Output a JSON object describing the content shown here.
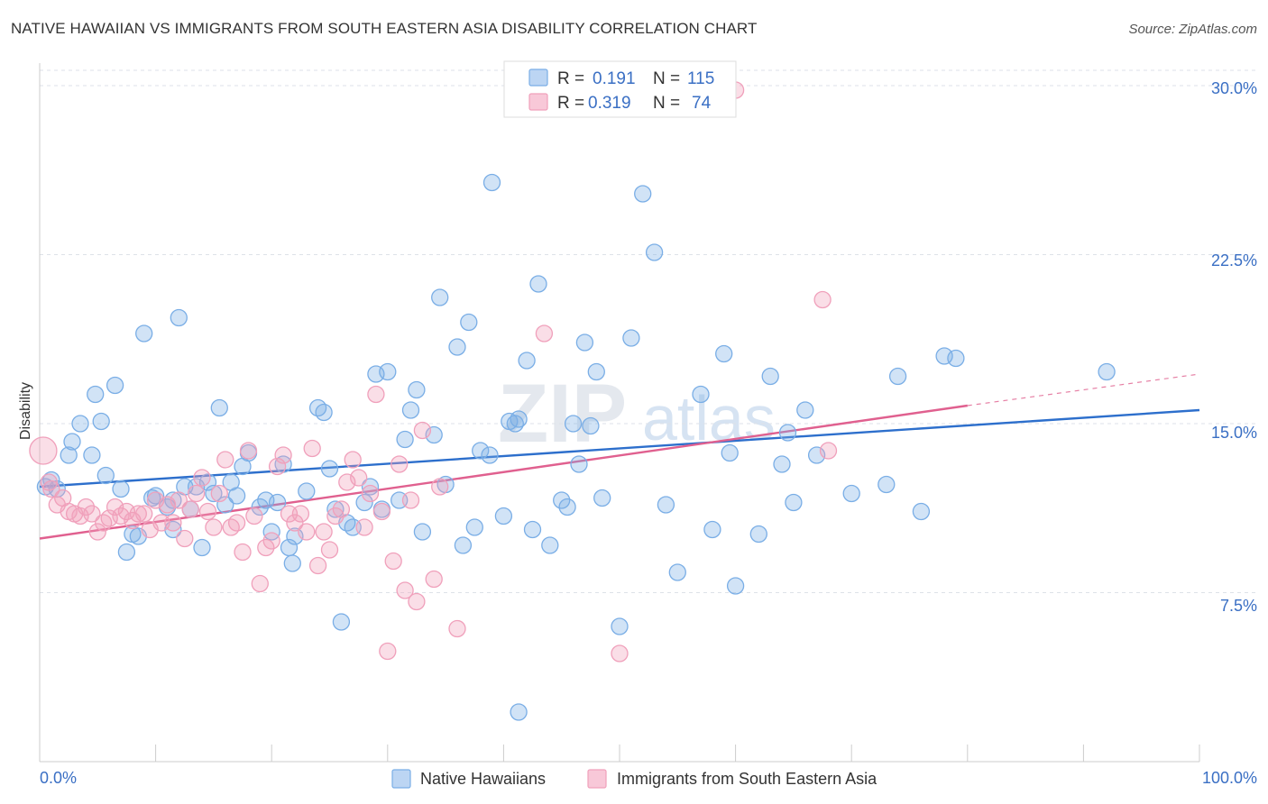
{
  "title": "NATIVE HAWAIIAN VS IMMIGRANTS FROM SOUTH EASTERN ASIA DISABILITY CORRELATION CHART",
  "source": "Source: ZipAtlas.com",
  "watermark": {
    "zip": "ZIP",
    "atlas": "atlas"
  },
  "chart_data": {
    "type": "scatter",
    "title": "NATIVE HAWAIIAN VS IMMIGRANTS FROM SOUTH EASTERN ASIA DISABILITY CORRELATION CHART",
    "xlabel": "",
    "ylabel": "Disability",
    "xlim": [
      0,
      100
    ],
    "ylim": [
      0,
      31
    ],
    "x_tick_labels": [
      "0.0%",
      "100.0%"
    ],
    "y_ticks": [
      {
        "value": 7.5,
        "label": "7.5%"
      },
      {
        "value": 15.0,
        "label": "15.0%"
      },
      {
        "value": 22.5,
        "label": "22.5%"
      },
      {
        "value": 30.0,
        "label": "30.0%"
      }
    ],
    "legend": {
      "r_label": "R =",
      "n_label": "N =",
      "entries": [
        {
          "name": "Native Hawaiians",
          "r": "0.191",
          "n": "115",
          "color": "#7aaee6"
        },
        {
          "name": "Immigrants from South Eastern Asia",
          "r": "0.319",
          "n": "74",
          "color": "#f0a0bb"
        }
      ]
    },
    "series": [
      {
        "name": "Native Hawaiians",
        "color": "#7aaee6",
        "line_color": "#2d6fcc",
        "trend": {
          "x0": 0,
          "y0": 12.2,
          "x1": 100,
          "y1": 15.6
        },
        "points": [
          [
            0.5,
            12.2
          ],
          [
            1,
            12.5
          ],
          [
            1.5,
            12.1
          ],
          [
            2.5,
            13.6
          ],
          [
            2.8,
            14.2
          ],
          [
            3.5,
            15
          ],
          [
            4.5,
            13.6
          ],
          [
            4.8,
            16.3
          ],
          [
            5.3,
            15.1
          ],
          [
            5.7,
            12.7
          ],
          [
            6.5,
            16.7
          ],
          [
            7,
            12.1
          ],
          [
            7.5,
            9.3
          ],
          [
            8,
            10.1
          ],
          [
            8.5,
            10
          ],
          [
            9,
            19
          ],
          [
            9.7,
            11.7
          ],
          [
            10,
            11.8
          ],
          [
            11,
            11.3
          ],
          [
            11.5,
            10.3
          ],
          [
            11.5,
            11.6
          ],
          [
            12,
            19.7
          ],
          [
            12.5,
            12.2
          ],
          [
            13,
            11.2
          ],
          [
            13.5,
            12.2
          ],
          [
            14,
            9.5
          ],
          [
            14.5,
            12.4
          ],
          [
            15,
            11.9
          ],
          [
            15.5,
            15.7
          ],
          [
            16,
            11.4
          ],
          [
            16.5,
            12.4
          ],
          [
            17,
            11.8
          ],
          [
            17.5,
            13.1
          ],
          [
            18,
            13.7
          ],
          [
            19,
            11.3
          ],
          [
            19.5,
            11.6
          ],
          [
            20,
            10.2
          ],
          [
            20.5,
            11.5
          ],
          [
            21,
            13.2
          ],
          [
            21.5,
            9.5
          ],
          [
            21.8,
            8.8
          ],
          [
            22,
            10
          ],
          [
            23,
            12
          ],
          [
            24,
            15.7
          ],
          [
            24.5,
            15.5
          ],
          [
            25,
            13
          ],
          [
            25.5,
            11.2
          ],
          [
            26,
            6.2
          ],
          [
            26.5,
            10.6
          ],
          [
            27,
            10.4
          ],
          [
            28,
            11.5
          ],
          [
            28.5,
            12.2
          ],
          [
            29,
            17.2
          ],
          [
            29.5,
            11.2
          ],
          [
            30,
            17.3
          ],
          [
            31,
            11.6
          ],
          [
            31.5,
            14.3
          ],
          [
            32,
            15.6
          ],
          [
            32.5,
            16.5
          ],
          [
            33,
            10.2
          ],
          [
            34,
            14.5
          ],
          [
            34.5,
            20.6
          ],
          [
            35,
            12.3
          ],
          [
            36,
            18.4
          ],
          [
            36.5,
            9.6
          ],
          [
            37,
            19.5
          ],
          [
            37.5,
            10.4
          ],
          [
            38,
            13.8
          ],
          [
            38.8,
            13.6
          ],
          [
            39,
            25.7
          ],
          [
            40,
            10.9
          ],
          [
            40.5,
            15.1
          ],
          [
            41,
            15
          ],
          [
            41.3,
            15.2
          ],
          [
            42,
            17.8
          ],
          [
            42.5,
            10.3
          ],
          [
            43,
            21.2
          ],
          [
            44,
            9.6
          ],
          [
            45,
            11.6
          ],
          [
            45.5,
            11.3
          ],
          [
            46,
            15
          ],
          [
            46.5,
            13.2
          ],
          [
            47,
            18.6
          ],
          [
            47.5,
            14.9
          ],
          [
            48,
            17.3
          ],
          [
            48.5,
            11.7
          ],
          [
            50,
            6
          ],
          [
            51,
            18.8
          ],
          [
            52,
            25.2
          ],
          [
            53,
            22.6
          ],
          [
            54,
            11.4
          ],
          [
            55,
            8.4
          ],
          [
            57,
            16.3
          ],
          [
            58,
            10.3
          ],
          [
            59,
            18.1
          ],
          [
            59.5,
            13.7
          ],
          [
            60,
            7.8
          ],
          [
            62,
            10.1
          ],
          [
            63,
            17.1
          ],
          [
            64,
            13.2
          ],
          [
            64.5,
            14.6
          ],
          [
            65,
            11.5
          ],
          [
            66,
            15.6
          ],
          [
            67,
            13.6
          ],
          [
            70,
            11.9
          ],
          [
            73,
            12.3
          ],
          [
            74,
            17.1
          ],
          [
            76,
            11.1
          ],
          [
            78,
            18
          ],
          [
            79,
            17.9
          ],
          [
            92,
            17.3
          ],
          [
            41.3,
            2.2
          ]
        ]
      },
      {
        "name": "Immigrants from South Eastern Asia",
        "color": "#f0a0bb",
        "line_color": "#e0608f",
        "trend": {
          "x0": 0,
          "y0": 9.9,
          "x1": 80,
          "y1": 15.8
        },
        "trend_extension": {
          "x0": 80,
          "y0": 15.8,
          "x1": 100,
          "y1": 17.2
        },
        "points": [
          [
            0.3,
            13.8
          ],
          [
            0.8,
            12.4
          ],
          [
            1,
            12.1
          ],
          [
            1.5,
            11.4
          ],
          [
            2,
            11.7
          ],
          [
            2.5,
            11.1
          ],
          [
            3,
            11
          ],
          [
            3.5,
            10.9
          ],
          [
            4,
            11.3
          ],
          [
            4.5,
            11
          ],
          [
            5,
            10.2
          ],
          [
            5.5,
            10.6
          ],
          [
            6,
            10.8
          ],
          [
            6.5,
            11.3
          ],
          [
            7,
            10.9
          ],
          [
            7.5,
            11.1
          ],
          [
            8,
            10.7
          ],
          [
            8.5,
            11
          ],
          [
            9,
            11
          ],
          [
            9.5,
            10.3
          ],
          [
            10,
            11.6
          ],
          [
            10.5,
            10.6
          ],
          [
            11,
            11.4
          ],
          [
            11.5,
            10.6
          ],
          [
            12,
            11.6
          ],
          [
            12.5,
            9.9
          ],
          [
            13,
            11.2
          ],
          [
            13.5,
            11.9
          ],
          [
            14,
            12.6
          ],
          [
            14.5,
            11.1
          ],
          [
            15,
            10.4
          ],
          [
            15.5,
            11.9
          ],
          [
            16,
            13.4
          ],
          [
            16.5,
            10.4
          ],
          [
            17,
            10.6
          ],
          [
            17.5,
            9.3
          ],
          [
            18,
            13.8
          ],
          [
            18.5,
            10.9
          ],
          [
            19,
            7.9
          ],
          [
            19.5,
            9.5
          ],
          [
            20,
            9.8
          ],
          [
            20.5,
            13.1
          ],
          [
            21,
            13.6
          ],
          [
            21.5,
            11
          ],
          [
            22,
            10.6
          ],
          [
            22.5,
            11
          ],
          [
            23,
            10.2
          ],
          [
            23.5,
            13.9
          ],
          [
            24,
            8.7
          ],
          [
            24.5,
            10.2
          ],
          [
            25,
            9.4
          ],
          [
            25.5,
            10.9
          ],
          [
            26,
            11.2
          ],
          [
            26.5,
            12.4
          ],
          [
            27,
            13.4
          ],
          [
            27.5,
            12.6
          ],
          [
            28,
            10.4
          ],
          [
            28.5,
            11.9
          ],
          [
            29,
            16.3
          ],
          [
            29.5,
            11.1
          ],
          [
            30,
            4.9
          ],
          [
            30.5,
            8.9
          ],
          [
            31,
            13.2
          ],
          [
            31.5,
            7.6
          ],
          [
            32,
            11.6
          ],
          [
            32.5,
            7.1
          ],
          [
            33,
            14.7
          ],
          [
            34,
            8.1
          ],
          [
            34.5,
            12.2
          ],
          [
            36,
            5.9
          ],
          [
            43.5,
            19
          ],
          [
            50,
            4.8
          ],
          [
            67.5,
            20.5
          ],
          [
            68,
            13.8
          ],
          [
            60,
            29.8
          ]
        ]
      }
    ]
  }
}
